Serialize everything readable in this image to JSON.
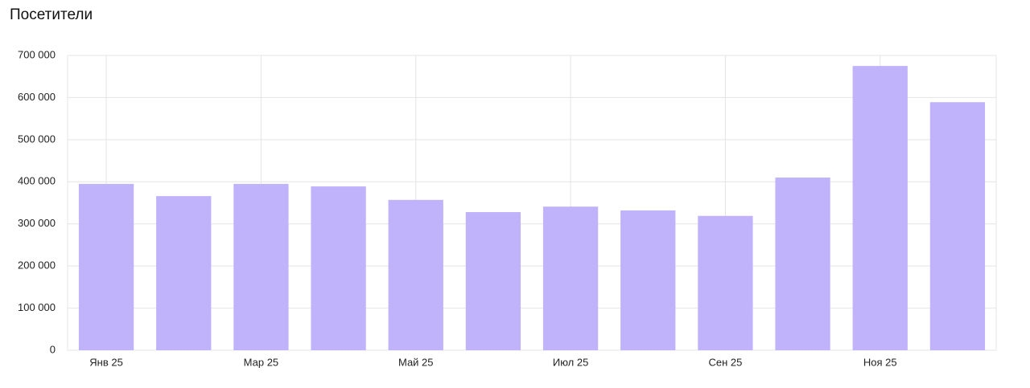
{
  "chart_data": {
    "type": "bar",
    "title": "Посетители",
    "categories": [
      "Янв 25",
      null,
      "Мар 25",
      null,
      "Май 25",
      null,
      "Июл 25",
      null,
      "Сен 25",
      null,
      "Ноя 25",
      null
    ],
    "values": [
      395000,
      366000,
      395000,
      389000,
      357000,
      328000,
      341000,
      332000,
      319000,
      410000,
      675000,
      589000
    ],
    "color": "#c0b3fb",
    "ylim": [
      0,
      700000
    ],
    "yticks": [
      0,
      {
        "value": 100000,
        "label": "100 000"
      },
      {
        "value": 200000,
        "label": "200 000"
      },
      {
        "value": 300000,
        "label": "300 000"
      },
      {
        "value": 400000,
        "label": "400 000"
      },
      {
        "value": 500000,
        "label": "500 000"
      },
      {
        "value": 600000,
        "label": "600 000"
      },
      {
        "value": 700000,
        "label": "700 000"
      }
    ],
    "grid": true
  }
}
